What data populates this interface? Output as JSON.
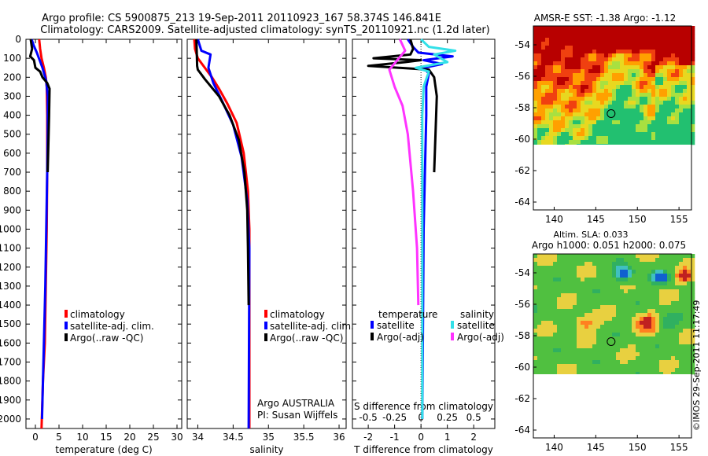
{
  "figure": {
    "title_line1": "Argo profile: CS 5900875_213 19-Sep-2011 20110923_167 58.374S 146.841E",
    "title_line2": "Climatology: CARS2009. Satellite-adjusted climatology: synTS_20110921.nc (1.2d later)",
    "footer": "©IMOS 29-Sep-2011 11:17:49",
    "colors": {
      "red": "#ff0000",
      "blue": "#0000ff",
      "black": "#000000",
      "cyan": "#33e0e8",
      "magenta": "#ff33ff"
    }
  },
  "chart_data": [
    {
      "id": "temperature",
      "type": "line",
      "xlabel": "temperature (deg C)",
      "xlim": [
        -2,
        31
      ],
      "xticks": [
        0,
        5,
        10,
        15,
        20,
        25,
        30
      ],
      "xticklabels": [
        "0",
        "5",
        "10",
        "15",
        "20",
        "25",
        "30"
      ],
      "ylim": [
        0,
        2050
      ],
      "yticks": [
        0,
        100,
        200,
        300,
        400,
        500,
        600,
        700,
        800,
        900,
        1000,
        1100,
        1200,
        1300,
        1400,
        1500,
        1600,
        1700,
        1800,
        1900,
        2000
      ],
      "y_reversed": true,
      "legend": {
        "position": "lower-middle",
        "entries": [
          "climatology",
          "satellite-adj. clim.",
          "Argo(..raw -QC)"
        ]
      },
      "series": [
        {
          "name": "climatology",
          "color": "#ff0000",
          "x": [
            0.8,
            1.0,
            1.3,
            1.8,
            2.2,
            2.4,
            2.5,
            2.5,
            2.4,
            2.2,
            2.0,
            1.6,
            1.3
          ],
          "y": [
            0,
            50,
            100,
            150,
            200,
            250,
            400,
            700,
            1000,
            1300,
            1600,
            1800,
            2050
          ]
        },
        {
          "name": "satellite-adj. clim.",
          "color": "#0000ff",
          "x": [
            -0.8,
            -0.4,
            0.3,
            1.5,
            2.3,
            2.6,
            2.6,
            2.5,
            2.3,
            2.1,
            1.8,
            1.4
          ],
          "y": [
            0,
            30,
            70,
            150,
            220,
            300,
            500,
            700,
            1000,
            1300,
            1600,
            2000
          ]
        },
        {
          "name": "Argo(..raw -QC)",
          "color": "#000000",
          "x": [
            -1.0,
            -0.7,
            -1.1,
            -0.3,
            0.0,
            1.0,
            1.5,
            2.5,
            3.0,
            2.9,
            2.6
          ],
          "y": [
            0,
            50,
            90,
            110,
            150,
            170,
            200,
            230,
            260,
            400,
            700
          ]
        }
      ]
    },
    {
      "id": "salinity",
      "type": "line",
      "xlabel": "salinity",
      "xlim": [
        33.85,
        36.1
      ],
      "xticks": [
        34,
        34.5,
        35,
        35.5,
        36
      ],
      "xticklabels": [
        "34",
        "34.5",
        "35",
        "35.5",
        "36"
      ],
      "ylim": [
        0,
        2050
      ],
      "y_reversed": true,
      "legend": {
        "position": "lower-right",
        "entries": [
          "climatology",
          "satellite-adj. clim.",
          "Argo(..raw -QC)"
        ]
      },
      "annotations": [
        "Argo AUSTRALIA",
        "PI: Susan Wijffels"
      ],
      "series": [
        {
          "name": "climatology",
          "color": "#ff0000",
          "x": [
            33.95,
            33.96,
            34.0,
            34.1,
            34.2,
            34.3,
            34.42,
            34.55,
            34.65,
            34.71,
            34.73,
            34.73,
            34.73
          ],
          "y": [
            0,
            50,
            100,
            150,
            200,
            260,
            340,
            440,
            600,
            800,
            1000,
            1400,
            2050
          ]
        },
        {
          "name": "satellite-adj. clim.",
          "color": "#0000ff",
          "x": [
            34.0,
            34.05,
            34.18,
            34.15,
            34.22,
            34.35,
            34.5,
            34.62,
            34.7,
            34.73,
            34.72
          ],
          "y": [
            0,
            60,
            80,
            150,
            230,
            330,
            450,
            620,
            850,
            1100,
            2050
          ]
        },
        {
          "name": "Argo(..raw -QC)",
          "color": "#000000",
          "x": [
            33.98,
            33.99,
            34.0,
            34.1,
            34.3,
            34.45,
            34.58,
            34.66,
            34.7,
            34.71,
            34.72
          ],
          "y": [
            0,
            140,
            160,
            210,
            300,
            400,
            530,
            700,
            900,
            1100,
            1400
          ]
        }
      ]
    },
    {
      "id": "difference",
      "type": "line",
      "xlabel": "T difference from climatology",
      "top_label": "S difference from climatology",
      "xlim": [
        -2.6,
        2.8
      ],
      "xticks": [
        -2,
        -1,
        0,
        1,
        2
      ],
      "xticklabels": [
        "-2",
        "-1",
        "0",
        "1",
        "2"
      ],
      "x2ticklabels": [
        "-0.5",
        "-0.25",
        "0",
        "0.25",
        "0.5"
      ],
      "ylim": [
        0,
        2050
      ],
      "y_reversed": true,
      "legend": {
        "position": "lower",
        "group_titles": [
          "temperature",
          "salinity"
        ],
        "entries": [
          "satellite",
          "Argo(-adj)",
          "satellite",
          "Argo(-adj)"
        ]
      },
      "series": [
        {
          "name": "satellite",
          "group": "temperature",
          "color": "#0000ff",
          "x": [
            -0.5,
            -0.3,
            -0.1,
            1.2,
            0.1,
            0.8,
            0.1,
            0.3,
            0.2,
            0.2,
            0.1,
            0.05
          ],
          "y": [
            0,
            40,
            70,
            90,
            110,
            130,
            150,
            180,
            250,
            400,
            1000,
            2000
          ]
        },
        {
          "name": "Argo(-adj)",
          "group": "temperature",
          "color": "#000000",
          "x": [
            -0.4,
            -0.3,
            -0.4,
            -1.8,
            0.0,
            -0.6,
            -2.0,
            0.3,
            0.5,
            0.6,
            0.55,
            0.5
          ],
          "y": [
            0,
            50,
            80,
            100,
            110,
            120,
            140,
            160,
            200,
            300,
            500,
            700
          ]
        },
        {
          "name": "satellite",
          "group": "salinity",
          "color": "#33e0e8",
          "x": [
            0.0,
            0.3,
            1.3,
            0.5,
            1.0,
            -0.2,
            0.3,
            0.1,
            0.05,
            0.05,
            0.05
          ],
          "y": [
            0,
            40,
            60,
            80,
            120,
            150,
            170,
            250,
            400,
            1000,
            2000
          ]
        },
        {
          "name": "Argo(-adj)",
          "group": "salinity",
          "color": "#ff33ff",
          "x": [
            -0.8,
            -0.6,
            -1.2,
            -1.0,
            -0.7,
            -0.5,
            -0.3,
            -0.15,
            -0.1
          ],
          "y": [
            0,
            60,
            160,
            250,
            350,
            500,
            800,
            1100,
            1400
          ]
        }
      ]
    },
    {
      "id": "amsre_sst_map",
      "type": "heatmap",
      "title": "AMSR-E SST: -1.38 Argo: -1.12",
      "xlim": [
        137.5,
        156.5
      ],
      "xticks": [
        140,
        145,
        150,
        155
      ],
      "xticklabels": [
        "140",
        "145",
        "150",
        "155"
      ],
      "ylim": [
        -64.5,
        -52.8
      ],
      "yticks": [
        -54,
        -56,
        -58,
        -60,
        -62,
        -64
      ],
      "yticklabels": [
        "-54",
        "-56",
        "-58",
        "-60",
        "-62",
        "-64"
      ],
      "marker": {
        "lon": 146.841,
        "lat": -58.374
      }
    },
    {
      "id": "altim_sla_map",
      "type": "heatmap",
      "title_line1": "Altim. SLA: 0.033",
      "title_line2": "Argo h1000: 0.051 h2000: 0.075",
      "xlim": [
        137.5,
        156.5
      ],
      "xticks": [
        140,
        145,
        150,
        155
      ],
      "xticklabels": [
        "140",
        "145",
        "150",
        "155"
      ],
      "ylim": [
        -64.5,
        -52.8
      ],
      "yticks": [
        -54,
        -56,
        -58,
        -60,
        -62,
        -64
      ],
      "yticklabels": [
        "-54",
        "-56",
        "-58",
        "-60",
        "-62",
        "-64"
      ],
      "marker": {
        "lon": 146.841,
        "lat": -58.374
      }
    }
  ]
}
